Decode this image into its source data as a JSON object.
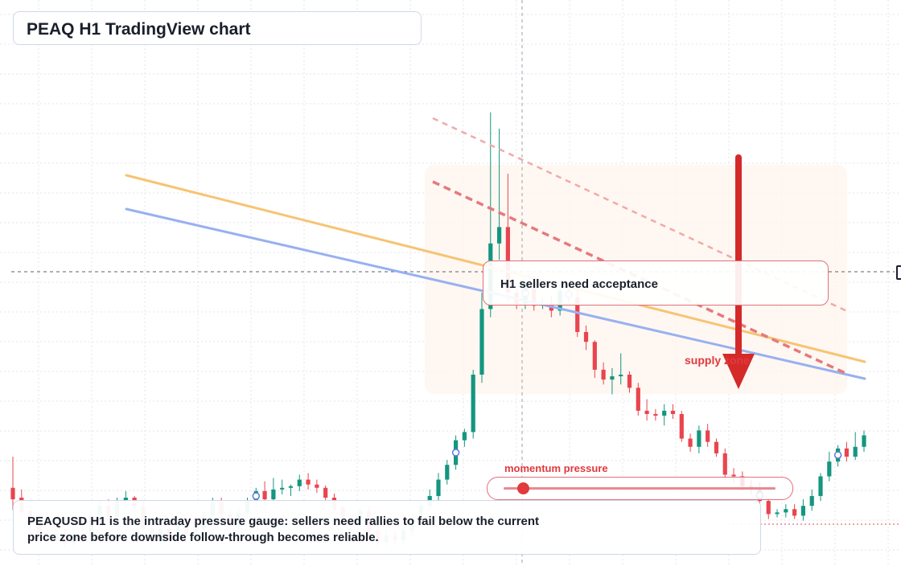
{
  "header": {
    "title": "PEAQ H1 TradingView chart"
  },
  "callout": {
    "text": "H1 sellers need acceptance"
  },
  "zone_label": {
    "text": "supply zone"
  },
  "momentum": {
    "label": "momentum pressure",
    "level": 0.07
  },
  "note": {
    "text": "PEAQUSD H1 is the intraday pressure gauge: sellers need rallies to fail below the current price zone before downside follow-through becomes reliable."
  },
  "colors": {
    "up": "#14967f",
    "down": "#e8454f",
    "trend_orange": "#f6c472",
    "trend_blue": "#97b1f0",
    "channel_red": "#e88a8f",
    "arrow": "#d42a2a"
  },
  "chart_data": {
    "type": "candlestick",
    "symbol": "PEAQUSD",
    "timeframe": "H1",
    "candles": [
      [
        162,
        148,
        135,
        200
      ],
      [
        150,
        133,
        128,
        160
      ],
      [
        134,
        118,
        110,
        140
      ],
      [
        118,
        104,
        99,
        130
      ],
      [
        104,
        100,
        96,
        112
      ],
      [
        100,
        106,
        92,
        112
      ],
      [
        106,
        94,
        90,
        112
      ],
      [
        94,
        106,
        90,
        115
      ],
      [
        106,
        100,
        95,
        114
      ],
      [
        100,
        128,
        95,
        136
      ],
      [
        128,
        140,
        122,
        146
      ],
      [
        140,
        126,
        120,
        148
      ],
      [
        126,
        146,
        118,
        150
      ],
      [
        146,
        150,
        138,
        158
      ],
      [
        150,
        140,
        132,
        152
      ],
      [
        140,
        112,
        98,
        145
      ],
      [
        112,
        96,
        90,
        118
      ],
      [
        96,
        112,
        92,
        116
      ],
      [
        112,
        100,
        96,
        120
      ],
      [
        100,
        118,
        95,
        124
      ],
      [
        118,
        104,
        99,
        126
      ],
      [
        104,
        112,
        98,
        122
      ],
      [
        112,
        128,
        104,
        132
      ],
      [
        128,
        144,
        122,
        150
      ],
      [
        144,
        130,
        124,
        150
      ],
      [
        130,
        116,
        110,
        136
      ],
      [
        116,
        132,
        108,
        138
      ],
      [
        132,
        146,
        126,
        150
      ],
      [
        146,
        158,
        140,
        162
      ],
      [
        158,
        148,
        140,
        170
      ],
      [
        148,
        160,
        142,
        174
      ],
      [
        160,
        162,
        154,
        172
      ],
      [
        162,
        164,
        152,
        166
      ],
      [
        164,
        172,
        158,
        178
      ],
      [
        172,
        166,
        160,
        180
      ],
      [
        166,
        162,
        156,
        172
      ],
      [
        162,
        150,
        140,
        165
      ],
      [
        150,
        138,
        132,
        155
      ],
      [
        138,
        124,
        118,
        140
      ],
      [
        124,
        120,
        114,
        130
      ],
      [
        120,
        134,
        114,
        140
      ],
      [
        134,
        110,
        104,
        140
      ],
      [
        110,
        96,
        90,
        115
      ],
      [
        96,
        104,
        90,
        112
      ],
      [
        104,
        98,
        92,
        110
      ],
      [
        98,
        110,
        92,
        114
      ],
      [
        110,
        126,
        104,
        130
      ],
      [
        126,
        140,
        118,
        145
      ],
      [
        140,
        152,
        134,
        160
      ],
      [
        152,
        172,
        146,
        180
      ],
      [
        172,
        190,
        166,
        196
      ],
      [
        190,
        220,
        184,
        226
      ],
      [
        220,
        230,
        212,
        234
      ],
      [
        230,
        300,
        222,
        306
      ],
      [
        300,
        380,
        290,
        400
      ],
      [
        380,
        460,
        370,
        620
      ],
      [
        460,
        480,
        440,
        600
      ],
      [
        480,
        400,
        390,
        545
      ],
      [
        400,
        386,
        380,
        410
      ],
      [
        386,
        412,
        380,
        418
      ],
      [
        412,
        384,
        378,
        418
      ],
      [
        384,
        386,
        380,
        394
      ],
      [
        386,
        378,
        370,
        396
      ],
      [
        378,
        402,
        372,
        406
      ],
      [
        402,
        394,
        388,
        408
      ],
      [
        394,
        352,
        346,
        416
      ],
      [
        352,
        340,
        330,
        360
      ],
      [
        340,
        306,
        296,
        342
      ],
      [
        306,
        294,
        288,
        315
      ],
      [
        294,
        298,
        276,
        308
      ],
      [
        298,
        300,
        288,
        326
      ],
      [
        300,
        284,
        278,
        304
      ],
      [
        284,
        256,
        250,
        290
      ],
      [
        256,
        252,
        244,
        270
      ],
      [
        252,
        250,
        244,
        258
      ],
      [
        250,
        256,
        238,
        264
      ],
      [
        256,
        252,
        246,
        264
      ],
      [
        252,
        222,
        218,
        256
      ],
      [
        222,
        212,
        206,
        228
      ],
      [
        212,
        232,
        204,
        238
      ],
      [
        232,
        218,
        212,
        240
      ],
      [
        218,
        204,
        200,
        222
      ],
      [
        204,
        178,
        172,
        210
      ],
      [
        178,
        176,
        168,
        186
      ],
      [
        176,
        164,
        158,
        182
      ],
      [
        164,
        160,
        154,
        172
      ],
      [
        160,
        146,
        140,
        168
      ],
      [
        146,
        130,
        124,
        150
      ],
      [
        130,
        132,
        126,
        136
      ],
      [
        132,
        136,
        126,
        142
      ],
      [
        136,
        128,
        124,
        142
      ],
      [
        128,
        140,
        122,
        148
      ],
      [
        140,
        152,
        134,
        160
      ],
      [
        152,
        176,
        146,
        180
      ],
      [
        176,
        194,
        170,
        206
      ],
      [
        194,
        210,
        188,
        214
      ],
      [
        210,
        200,
        194,
        218
      ],
      [
        200,
        212,
        196,
        230
      ],
      [
        212,
        226,
        206,
        232
      ]
    ],
    "pivot_markers": [
      12,
      57,
      80,
      122,
      233,
      287,
      298,
      357
    ],
    "trendlines": [
      {
        "name": "descending support",
        "color": "orange"
      },
      {
        "name": "descending resistance",
        "color": "blue"
      }
    ],
    "zones": [
      "supply zone"
    ],
    "annotations": [
      "H1 sellers need acceptance",
      "supply zone",
      "momentum pressure"
    ]
  }
}
